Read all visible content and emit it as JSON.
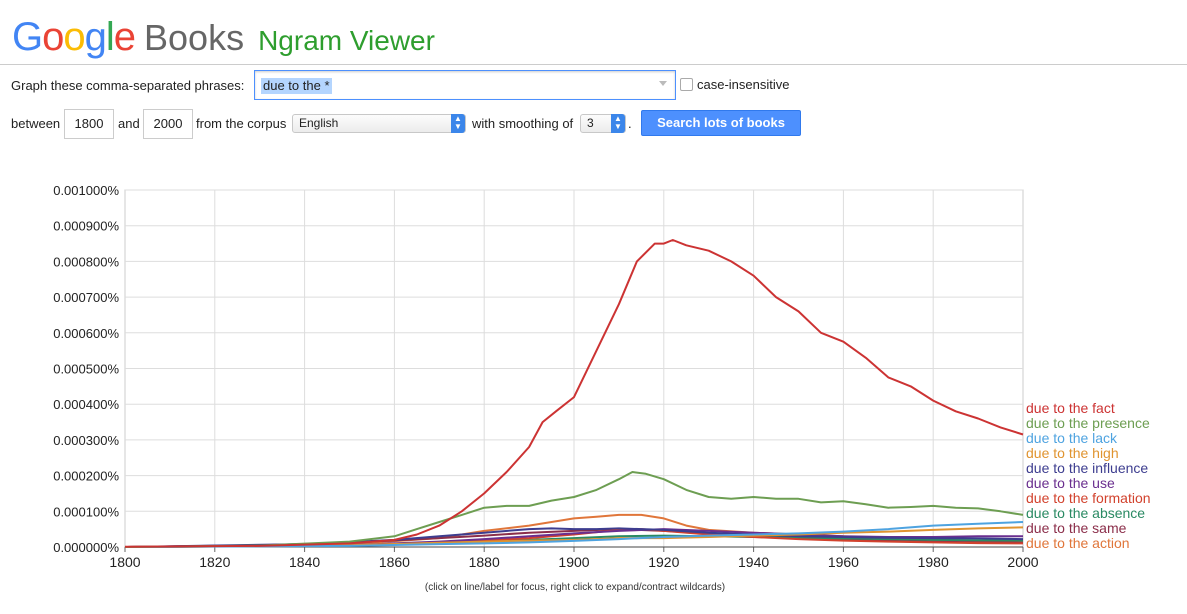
{
  "header": {
    "logo_letters": [
      "G",
      "o",
      "o",
      "g",
      "l",
      "e"
    ],
    "books": "Books",
    "title": "Ngram Viewer"
  },
  "form": {
    "phrases_label": "Graph these comma-separated phrases:",
    "phrases_value": "due to the *",
    "case_insensitive_label": "case-insensitive",
    "between_label": "between",
    "year_start": "1800",
    "and_label": "and",
    "year_end": "2000",
    "corpus_label": "from the corpus",
    "corpus_value": "English",
    "smoothing_label": "with smoothing of",
    "smoothing_value": "3",
    "period": ".",
    "search_button": "Search lots of books"
  },
  "hint": "(click on line/label for focus, right click to expand/contract wildcards)",
  "chart_data": {
    "type": "line",
    "xlim": [
      1800,
      2000
    ],
    "ylim": [
      0,
      0.001
    ],
    "x_ticks": [
      "1800",
      "1820",
      "1840",
      "1860",
      "1880",
      "1900",
      "1920",
      "1940",
      "1960",
      "1980",
      "2000"
    ],
    "y_ticks": [
      "0.000000%",
      "0.000100%",
      "0.000200%",
      "0.000300%",
      "0.000400%",
      "0.000500%",
      "0.000600%",
      "0.000700%",
      "0.000800%",
      "0.000900%",
      "0.001000%"
    ],
    "grid": true,
    "legend_placement": "right-end-of-lines",
    "series": [
      {
        "name": "due to the fact",
        "color": "#cc3333",
        "x": [
          1800,
          1830,
          1850,
          1860,
          1865,
          1870,
          1875,
          1880,
          1885,
          1890,
          1893,
          1896,
          1900,
          1905,
          1910,
          1914,
          1918,
          1920,
          1922,
          1925,
          1930,
          1935,
          1940,
          1945,
          1950,
          1955,
          1960,
          1965,
          1970,
          1975,
          1980,
          1985,
          1990,
          1995,
          2000
        ],
        "y": [
          5e-07,
          3e-06,
          1e-05,
          2e-05,
          3.5e-05,
          6e-05,
          0.0001,
          0.00015,
          0.00021,
          0.00028,
          0.00035,
          0.00038,
          0.00042,
          0.00055,
          0.00068,
          0.0008,
          0.00085,
          0.00085,
          0.00086,
          0.000845,
          0.00083,
          0.0008,
          0.00076,
          0.0007,
          0.00066,
          0.0006,
          0.000575,
          0.00053,
          0.000475,
          0.00045,
          0.00041,
          0.00038,
          0.00036,
          0.000335,
          0.000315
        ]
      },
      {
        "name": "due to the presence",
        "color": "#6d9e52",
        "x": [
          1800,
          1830,
          1850,
          1860,
          1865,
          1870,
          1875,
          1880,
          1885,
          1890,
          1895,
          1900,
          1905,
          1910,
          1913,
          1916,
          1920,
          1925,
          1930,
          1935,
          1940,
          1945,
          1950,
          1955,
          1960,
          1965,
          1970,
          1975,
          1980,
          1985,
          1990,
          1995,
          2000
        ],
        "y": [
          0,
          4e-06,
          1.5e-05,
          3e-05,
          5e-05,
          7e-05,
          9e-05,
          0.00011,
          0.000115,
          0.000115,
          0.00013,
          0.00014,
          0.00016,
          0.00019,
          0.00021,
          0.000205,
          0.00019,
          0.00016,
          0.00014,
          0.000135,
          0.00014,
          0.000135,
          0.000135,
          0.000125,
          0.000128,
          0.00012,
          0.00011,
          0.000112,
          0.000115,
          0.00011,
          0.000108,
          0.0001,
          9e-05
        ]
      },
      {
        "name": "due to the lack",
        "color": "#4ea3e0",
        "x": [
          1800,
          1850,
          1870,
          1880,
          1890,
          1900,
          1910,
          1920,
          1930,
          1940,
          1950,
          1960,
          1970,
          1980,
          1990,
          2000
        ],
        "y": [
          0,
          3e-06,
          8e-06,
          1e-05,
          1.3e-05,
          1.7e-05,
          2.2e-05,
          2.8e-05,
          3.2e-05,
          3.5e-05,
          3.8e-05,
          4.3e-05,
          5e-05,
          6e-05,
          6.5e-05,
          7e-05
        ]
      },
      {
        "name": "due to the high",
        "color": "#e09430",
        "x": [
          1800,
          1850,
          1870,
          1880,
          1890,
          1900,
          1905,
          1910,
          1915,
          1920,
          1930,
          1940,
          1950,
          1960,
          1970,
          1980,
          1990,
          2000
        ],
        "y": [
          0,
          5e-06,
          1.2e-05,
          1.5e-05,
          1.8e-05,
          2e-05,
          2.2e-05,
          2.5e-05,
          2.5e-05,
          2.5e-05,
          2.8e-05,
          3.2e-05,
          3.5e-05,
          4e-05,
          4.3e-05,
          4.8e-05,
          5.2e-05,
          5.5e-05
        ]
      },
      {
        "name": "due to the influence",
        "color": "#3d3d8f",
        "x": [
          1800,
          1840,
          1860,
          1870,
          1880,
          1890,
          1895,
          1900,
          1905,
          1910,
          1920,
          1930,
          1940,
          1950,
          1960,
          1970,
          1980,
          1990,
          2000
        ],
        "y": [
          0,
          8e-06,
          2e-05,
          3e-05,
          4e-05,
          5e-05,
          5.2e-05,
          5e-05,
          5e-05,
          5.2e-05,
          4.8e-05,
          4e-05,
          3.5e-05,
          3e-05,
          2.8e-05,
          2.6e-05,
          2.5e-05,
          2.4e-05,
          2.2e-05
        ]
      },
      {
        "name": "due to the use",
        "color": "#6a2f8f",
        "x": [
          1800,
          1850,
          1870,
          1880,
          1890,
          1900,
          1910,
          1920,
          1930,
          1940,
          1950,
          1960,
          1970,
          1980,
          1990,
          2000
        ],
        "y": [
          0,
          5e-06,
          1.5e-05,
          2.2e-05,
          3e-05,
          3.8e-05,
          4.5e-05,
          5e-05,
          4.5e-05,
          4e-05,
          3.5e-05,
          3e-05,
          2.8e-05,
          2.8e-05,
          3e-05,
          3e-05
        ]
      },
      {
        "name": "due to the formation",
        "color": "#d2422d",
        "x": [
          1800,
          1850,
          1870,
          1880,
          1890,
          1900,
          1910,
          1915,
          1920,
          1930,
          1940,
          1950,
          1960,
          1970,
          1980,
          1990,
          2000
        ],
        "y": [
          0,
          4e-06,
          1.2e-05,
          1.8e-05,
          2.5e-05,
          3.5e-05,
          4.8e-05,
          5e-05,
          4.5e-05,
          3.5e-05,
          2.8e-05,
          2.2e-05,
          1.8e-05,
          1.5e-05,
          1.3e-05,
          1.1e-05,
          1e-05
        ]
      },
      {
        "name": "due to the absence",
        "color": "#2a8a63",
        "x": [
          1800,
          1850,
          1870,
          1880,
          1890,
          1900,
          1910,
          1920,
          1930,
          1940,
          1950,
          1960,
          1970,
          1980,
          1990,
          2000
        ],
        "y": [
          0,
          4e-06,
          1.2e-05,
          1.6e-05,
          2e-05,
          2.5e-05,
          3e-05,
          3.2e-05,
          3e-05,
          2.8e-05,
          2.6e-05,
          2.4e-05,
          2.2e-05,
          2e-05,
          1.9e-05,
          1.8e-05
        ]
      },
      {
        "name": "due to the same",
        "color": "#8b2e4a",
        "x": [
          1800,
          1830,
          1850,
          1870,
          1880,
          1890,
          1900,
          1910,
          1920,
          1930,
          1940,
          1950,
          1960,
          1970,
          1980,
          1990,
          2000
        ],
        "y": [
          0,
          5e-06,
          1.2e-05,
          2.5e-05,
          3.2e-05,
          4e-05,
          4.5e-05,
          5e-05,
          4.5e-05,
          3.8e-05,
          3e-05,
          2.5e-05,
          2e-05,
          1.7e-05,
          1.5e-05,
          1.3e-05,
          1.2e-05
        ]
      },
      {
        "name": "due to the action",
        "color": "#e0763a",
        "x": [
          1800,
          1850,
          1870,
          1880,
          1890,
          1900,
          1905,
          1910,
          1915,
          1920,
          1925,
          1930,
          1940,
          1950,
          1960,
          1970,
          1980,
          1990,
          2000
        ],
        "y": [
          0,
          8e-06,
          2.5e-05,
          4.5e-05,
          6e-05,
          8e-05,
          8.5e-05,
          9e-05,
          9e-05,
          8e-05,
          6e-05,
          4.8e-05,
          4e-05,
          3.5e-05,
          3e-05,
          2.5e-05,
          2e-05,
          1.8e-05,
          1.5e-05
        ]
      }
    ]
  }
}
